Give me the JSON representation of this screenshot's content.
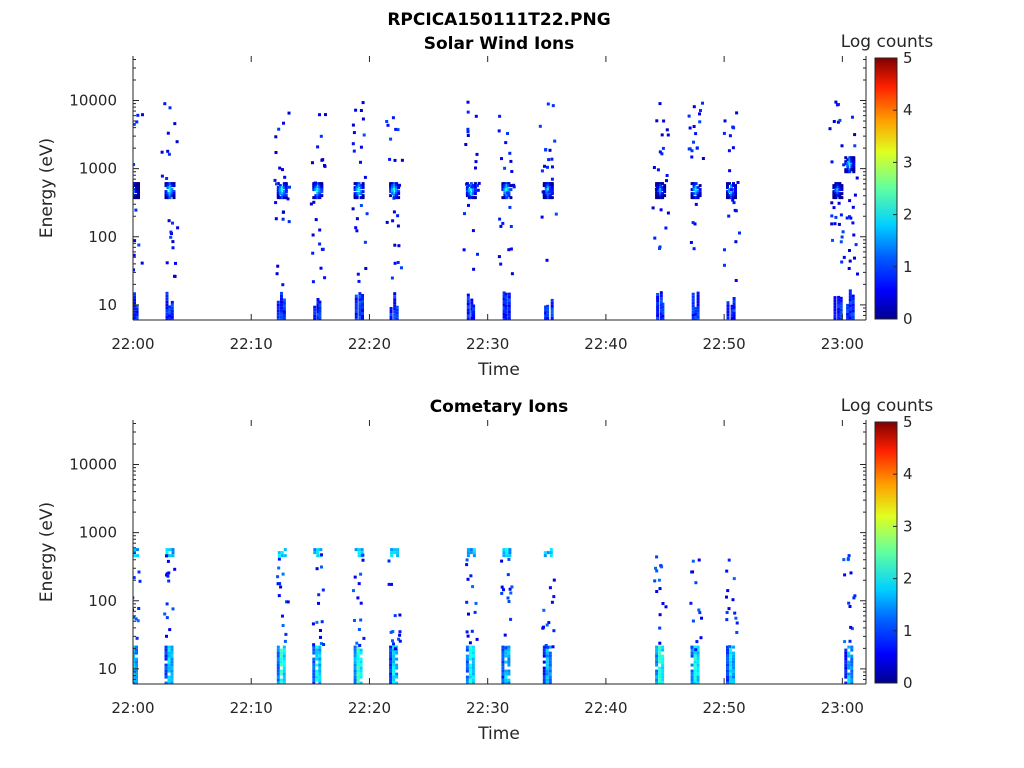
{
  "figure_title": "RPCICA150111T22.PNG",
  "colors": {
    "colormap": [
      "#00008f",
      "#0000ff",
      "#0080ff",
      "#00ffff",
      "#80ff80",
      "#ffff00",
      "#ff8000",
      "#ff0000",
      "#800000"
    ],
    "axes": "#262626"
  },
  "chart_data": [
    {
      "type": "heatmap",
      "title": "Solar Wind Ions",
      "xlabel": "Time",
      "ylabel": "Energy (eV)",
      "y_scale": "log",
      "ylim": [
        6,
        45000
      ],
      "xlim": [
        "22:00",
        "23:02"
      ],
      "x_ticks": [
        "22:00",
        "22:10",
        "22:20",
        "22:30",
        "22:40",
        "22:50",
        "23:00"
      ],
      "y_ticks": [
        "10",
        "100",
        "1000",
        "10000"
      ],
      "colorbar": {
        "label": "Log counts",
        "range": [
          0,
          5
        ],
        "ticks": [
          "0",
          "1",
          "2",
          "3",
          "4",
          "5"
        ]
      },
      "bursts": [
        {
          "time": "22:00",
          "main_energy_eV": 500,
          "peak_log_counts": 1.0
        },
        {
          "time": "22:03",
          "main_energy_eV": 500,
          "peak_log_counts": 2.0
        },
        {
          "time": "22:12.5",
          "main_energy_eV": 500,
          "peak_log_counts": 2.0
        },
        {
          "time": "22:15.5",
          "main_energy_eV": 500,
          "peak_log_counts": 2.0
        },
        {
          "time": "22:19",
          "main_energy_eV": 500,
          "peak_log_counts": 2.0
        },
        {
          "time": "22:22",
          "main_energy_eV": 500,
          "peak_log_counts": 2.0
        },
        {
          "time": "22:28.5",
          "main_energy_eV": 500,
          "peak_log_counts": 2.0
        },
        {
          "time": "22:31.5",
          "main_energy_eV": 500,
          "peak_log_counts": 2.0
        },
        {
          "time": "22:35",
          "main_energy_eV": 500,
          "peak_log_counts": 1.8
        },
        {
          "time": "22:44.5",
          "main_energy_eV": 500,
          "peak_log_counts": 1.5
        },
        {
          "time": "22:47.5",
          "main_energy_eV": 500,
          "peak_log_counts": 1.8
        },
        {
          "time": "22:50.5",
          "main_energy_eV": 500,
          "peak_log_counts": 1.8
        },
        {
          "time": "22:59.5",
          "main_energy_eV": 500,
          "peak_log_counts": 1.5
        },
        {
          "time": "23:00.5",
          "main_energy_eV": 1200,
          "peak_log_counts": 1.8
        }
      ]
    },
    {
      "type": "heatmap",
      "title": "Cometary Ions",
      "xlabel": "Time",
      "ylabel": "Energy (eV)",
      "y_scale": "log",
      "ylim": [
        6,
        45000
      ],
      "xlim": [
        "22:00",
        "23:02"
      ],
      "x_ticks": [
        "22:00",
        "22:10",
        "22:20",
        "22:30",
        "22:40",
        "22:50",
        "23:00"
      ],
      "y_ticks": [
        "10",
        "100",
        "1000",
        "10000"
      ],
      "colorbar": {
        "label": "Log counts",
        "range": [
          0,
          5
        ],
        "ticks": [
          "0",
          "1",
          "2",
          "3",
          "4",
          "5"
        ]
      },
      "bursts": [
        {
          "time": "22:00",
          "main_energy_eV": 12,
          "peak_log_counts": 2.0
        },
        {
          "time": "22:03",
          "main_energy_eV": 12,
          "peak_log_counts": 2.2
        },
        {
          "time": "22:12.5",
          "main_energy_eV": 12,
          "peak_log_counts": 2.5
        },
        {
          "time": "22:15.5",
          "main_energy_eV": 12,
          "peak_log_counts": 2.3
        },
        {
          "time": "22:19",
          "main_energy_eV": 12,
          "peak_log_counts": 2.6
        },
        {
          "time": "22:22",
          "main_energy_eV": 12,
          "peak_log_counts": 2.2
        },
        {
          "time": "22:28.5",
          "main_energy_eV": 12,
          "peak_log_counts": 2.4
        },
        {
          "time": "22:31.5",
          "main_energy_eV": 12,
          "peak_log_counts": 2.2
        },
        {
          "time": "22:35",
          "main_energy_eV": 12,
          "peak_log_counts": 2.0
        },
        {
          "time": "22:44.5",
          "main_energy_eV": 12,
          "peak_log_counts": 2.6
        },
        {
          "time": "22:47.5",
          "main_energy_eV": 12,
          "peak_log_counts": 2.4
        },
        {
          "time": "22:50.5",
          "main_energy_eV": 12,
          "peak_log_counts": 2.2
        },
        {
          "time": "23:00.5",
          "main_energy_eV": 12,
          "peak_log_counts": 2.0
        }
      ]
    }
  ]
}
